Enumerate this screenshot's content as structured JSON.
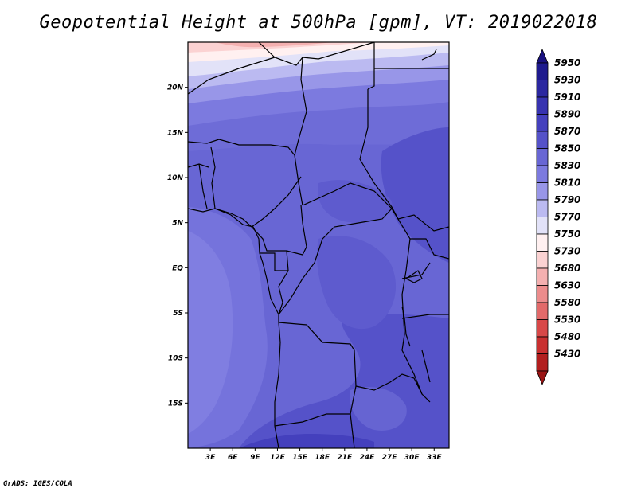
{
  "title": "Geopotential Height at 500hPa [gpm], VT: 2019022018",
  "footer": "GrADS: IGES/COLA",
  "map": {
    "lon_range": [
      0,
      35
    ],
    "lat_range": [
      -20,
      25
    ],
    "lat_ticks": [
      {
        "lat": 20,
        "label": "20N"
      },
      {
        "lat": 15,
        "label": "15N"
      },
      {
        "lat": 10,
        "label": "10N"
      },
      {
        "lat": 5,
        "label": "5N"
      },
      {
        "lat": 0,
        "label": "EQ"
      },
      {
        "lat": -5,
        "label": "5S"
      },
      {
        "lat": -10,
        "label": "10S"
      },
      {
        "lat": -15,
        "label": "15S"
      }
    ],
    "lon_ticks": [
      {
        "lon": 3,
        "label": "3E"
      },
      {
        "lon": 6,
        "label": "6E"
      },
      {
        "lon": 9,
        "label": "9E"
      },
      {
        "lon": 12,
        "label": "12E"
      },
      {
        "lon": 15,
        "label": "15E"
      },
      {
        "lon": 18,
        "label": "18E"
      },
      {
        "lon": 21,
        "label": "21E"
      },
      {
        "lon": 24,
        "label": "24E"
      },
      {
        "lon": 27,
        "label": "27E"
      },
      {
        "lon": 30,
        "label": "30E"
      },
      {
        "lon": 33,
        "label": "33E"
      }
    ]
  },
  "colorbar": {
    "levels": [
      {
        "value": "5950",
        "color": "#1e1a8e"
      },
      {
        "value": "5930",
        "color": "#2b27a0"
      },
      {
        "value": "5910",
        "color": "#3733b0"
      },
      {
        "value": "5890",
        "color": "#4440bd"
      },
      {
        "value": "5870",
        "color": "#5552c9"
      },
      {
        "value": "5850",
        "color": "#6866d4"
      },
      {
        "value": "5830",
        "color": "#7c7adf"
      },
      {
        "value": "5810",
        "color": "#9896e8"
      },
      {
        "value": "5790",
        "color": "#bbbaf1"
      },
      {
        "value": "5770",
        "color": "#e2e2f8"
      },
      {
        "value": "5750",
        "color": "#fff0f0"
      },
      {
        "value": "5730",
        "color": "#fbd2d2"
      },
      {
        "value": "5680",
        "color": "#f4b0b0"
      },
      {
        "value": "5630",
        "color": "#ec8c8c"
      },
      {
        "value": "5580",
        "color": "#e26a6a"
      },
      {
        "value": "5530",
        "color": "#d84848"
      },
      {
        "value": "5480",
        "color": "#c93030"
      },
      {
        "value": "5430",
        "color": "#b21e1e"
      },
      {
        "value": "",
        "color": "#9a1414"
      }
    ],
    "top_arrow_color": "#1a1280"
  }
}
